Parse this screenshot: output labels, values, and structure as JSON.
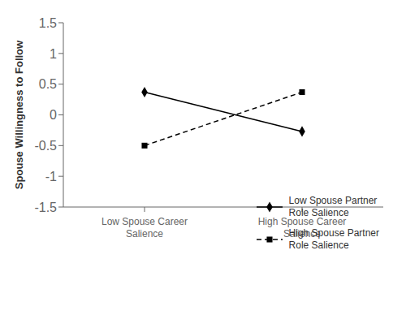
{
  "chart_data": {
    "type": "line",
    "categories": [
      "Low Spouse Career\nSalience",
      "High Spouse Career\nSalience"
    ],
    "series": [
      {
        "name": "Low Spouse Partner\nRole Salience",
        "color": "#000000",
        "values": [
          0.37,
          -0.27
        ],
        "marker": "diamond",
        "line_style": "solid"
      },
      {
        "name": "High Spouse Partner\nRole Salience",
        "color": "#000000",
        "values": [
          -0.5,
          0.37
        ],
        "marker": "square",
        "line_style": "dashed"
      }
    ],
    "ylabel": "Spouse Willingness to Follow",
    "ylim": [
      -1.5,
      1.5
    ],
    "yticks": [
      -1.5,
      -1,
      -0.5,
      0,
      0.5,
      1,
      1.5
    ],
    "legend": "lower right",
    "grid": false
  }
}
